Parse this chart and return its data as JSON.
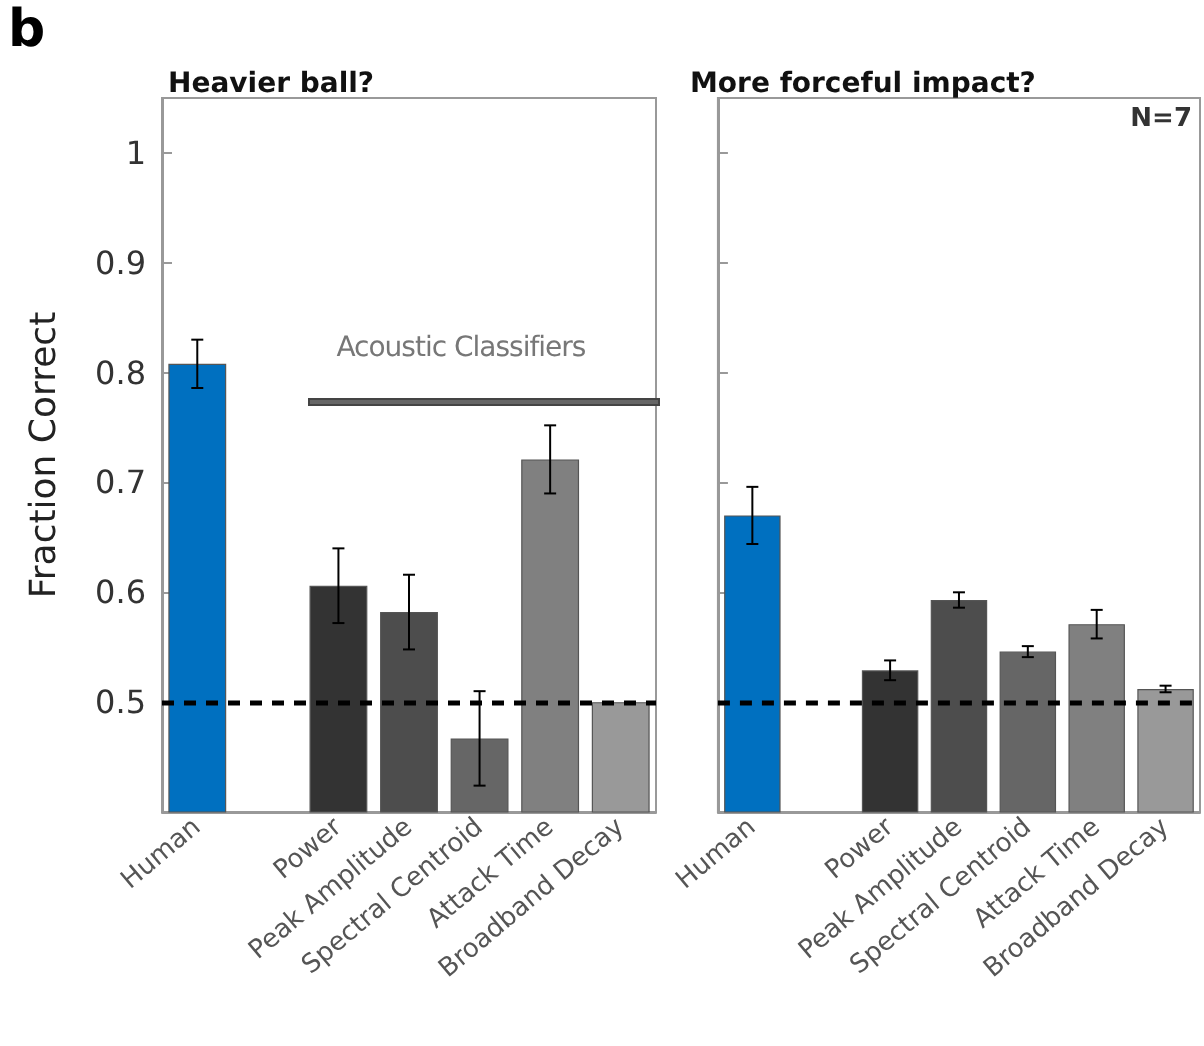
{
  "chart_data": [
    {
      "type": "bar",
      "title": "Heavier ball?",
      "ylabel": "Fraction Correct",
      "categories": [
        "Human",
        null,
        "Power",
        "Peak Amplitude",
        "Spectral Centroid",
        "Attack Time",
        "Broadband Decay"
      ],
      "values": [
        0.808,
        null,
        0.606,
        0.582,
        0.467,
        0.721,
        0.5
      ],
      "errors": [
        0.022,
        null,
        0.034,
        0.034,
        0.043,
        0.031,
        null
      ],
      "colors": [
        "#0070c0",
        "#ffffff",
        "#333333",
        "#4d4d4d",
        "#666666",
        "#808080",
        "#999999"
      ],
      "ylim": [
        0.4,
        1.05
      ],
      "yticks": [
        0.5,
        0.6,
        0.7,
        0.8,
        0.9,
        1
      ],
      "ref_lines": [
        {
          "axis": "y",
          "value": 0.5,
          "color": "#000000",
          "line_style": "dashed"
        }
      ],
      "annotations": [
        "b",
        "Acoustic Classifiers"
      ],
      "grid": false
    },
    {
      "type": "bar",
      "title": "More forceful impact?",
      "categories": [
        "Human",
        null,
        "Power",
        "Peak Amplitude",
        "Spectral Centroid",
        "Attack Time",
        "Broadband Decay"
      ],
      "values": [
        0.67,
        null,
        0.529,
        0.593,
        0.546,
        0.571,
        0.512
      ],
      "errors": [
        0.026,
        null,
        0.009,
        0.007,
        0.005,
        0.013,
        0.003
      ],
      "colors": [
        "#0070c0",
        "#ffffff",
        "#333333",
        "#4d4d4d",
        "#666666",
        "#808080",
        "#999999"
      ],
      "ylim": [
        0.4,
        1.05
      ],
      "yticks": [
        0.5,
        0.6,
        0.7,
        0.8,
        0.9,
        1
      ],
      "ref_lines": [
        {
          "axis": "y",
          "value": 0.5,
          "color": "#000000",
          "line_style": "dashed"
        }
      ],
      "annotations": [
        "N=7"
      ],
      "tick_labels": "x",
      "grid": false
    }
  ]
}
